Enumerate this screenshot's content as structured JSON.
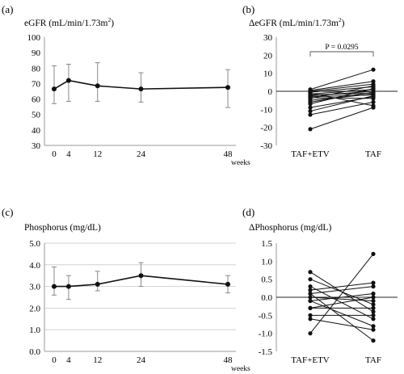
{
  "colors": {
    "line": "#111111",
    "axis": "#9a9a9a",
    "errorbar": "#888888",
    "background": "#ffffff"
  },
  "chart_data": [
    {
      "panel": "(a)",
      "type": "line",
      "title": "eGFR (mL/min/1.73m",
      "title_sup": "2",
      "title_close": ")",
      "xlabel": "weeks",
      "x": [
        0,
        4,
        12,
        24,
        48
      ],
      "x_ticks": [
        "0",
        "4",
        "12",
        "24",
        "48"
      ],
      "ylim": [
        30,
        100
      ],
      "y_ticks": [
        "30",
        "40",
        "50",
        "60",
        "70",
        "80",
        "90",
        "100"
      ],
      "grid": false,
      "series": [
        {
          "values": [
            66.5,
            72,
            68.5,
            66.5,
            67.5
          ],
          "err_low": [
            57,
            58.5,
            58.5,
            58,
            54.5
          ],
          "err_high": [
            81.5,
            82.5,
            83.5,
            77,
            79
          ]
        }
      ]
    },
    {
      "panel": "(b)",
      "type": "line",
      "title": "ΔeGFR (mL/min/1.73m",
      "title_sup": "2",
      "title_close": ")",
      "categories": [
        "TAF+ETV",
        "TAF"
      ],
      "ylim": [
        -30,
        30
      ],
      "y_ticks": [
        "30",
        "20",
        "10",
        "0",
        "-10",
        "-20",
        "-30"
      ],
      "annotation": "P = 0.0295",
      "series": [
        {
          "values": [
            1,
            12
          ]
        },
        {
          "values": [
            0.5,
            5.5
          ]
        },
        {
          "values": [
            0,
            4
          ]
        },
        {
          "values": [
            -0.5,
            2.5
          ]
        },
        {
          "values": [
            -1,
            -8
          ]
        },
        {
          "values": [
            -1.5,
            1
          ]
        },
        {
          "values": [
            -2,
            -1
          ]
        },
        {
          "values": [
            -2.5,
            0
          ]
        },
        {
          "values": [
            -3,
            -2
          ]
        },
        {
          "values": [
            -3.5,
            -4
          ]
        },
        {
          "values": [
            -4,
            3
          ]
        },
        {
          "values": [
            -5,
            -1.5
          ]
        },
        {
          "values": [
            -6,
            -0.5
          ]
        },
        {
          "values": [
            -7,
            1.5
          ]
        },
        {
          "values": [
            -9,
            -3
          ]
        },
        {
          "values": [
            -11,
            -2.5
          ]
        },
        {
          "values": [
            -13,
            -6
          ]
        },
        {
          "values": [
            -21,
            -9
          ]
        }
      ]
    },
    {
      "panel": "(c)",
      "type": "line",
      "title": "Phosphorus (mg/dL)",
      "xlabel": "weeks",
      "x": [
        0,
        4,
        12,
        24,
        48
      ],
      "x_ticks": [
        "0",
        "4",
        "12",
        "24",
        "48"
      ],
      "ylim": [
        0,
        5
      ],
      "y_ticks": [
        "0.0",
        "1.0",
        "2.0",
        "3.0",
        "4.0",
        "5.0"
      ],
      "grid": true,
      "series": [
        {
          "values": [
            3.0,
            3.0,
            3.1,
            3.5,
            3.1
          ],
          "err_low": [
            2.6,
            2.4,
            2.8,
            3.0,
            2.7
          ],
          "err_high": [
            3.9,
            3.5,
            3.7,
            4.1,
            3.5
          ]
        }
      ]
    },
    {
      "panel": "(d)",
      "type": "line",
      "title": "ΔPhosphorus (mg/dL)",
      "categories": [
        "TAF+ETV",
        "TAF"
      ],
      "ylim": [
        -1.5,
        1.5
      ],
      "y_ticks": [
        "1.5",
        "1.0",
        "0.5",
        "0.0",
        "-0.5",
        "-1.0",
        "-1.5"
      ],
      "series": [
        {
          "values": [
            0.7,
            -0.4
          ]
        },
        {
          "values": [
            0.5,
            -0.2
          ]
        },
        {
          "values": [
            0.3,
            -0.6
          ]
        },
        {
          "values": [
            0.2,
            0.4
          ]
        },
        {
          "values": [
            0.1,
            0.3
          ]
        },
        {
          "values": [
            0.0,
            -0.1
          ]
        },
        {
          "values": [
            -0.1,
            0.1
          ]
        },
        {
          "values": [
            -0.1,
            -0.8
          ]
        },
        {
          "values": [
            -0.3,
            0.0
          ]
        },
        {
          "values": [
            -0.3,
            -0.3
          ]
        },
        {
          "values": [
            -0.5,
            -0.5
          ]
        },
        {
          "values": [
            -0.6,
            -0.9
          ]
        },
        {
          "values": [
            -1.0,
            1.2
          ]
        },
        {
          "values": [
            0.1,
            -1.2
          ]
        }
      ]
    }
  ]
}
